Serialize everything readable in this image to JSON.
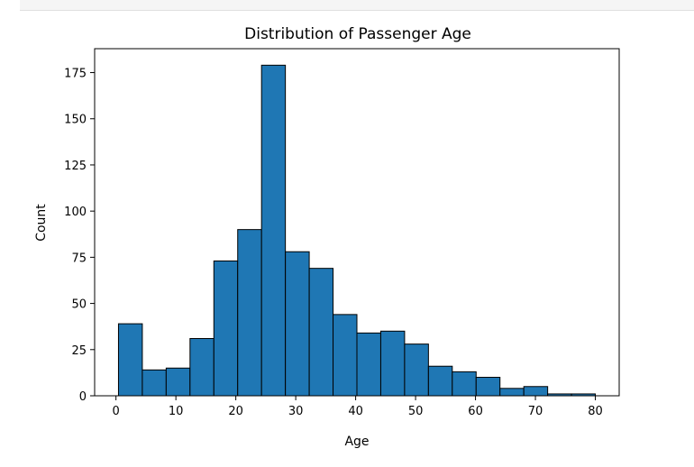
{
  "chart_data": {
    "type": "bar",
    "title": "Distribution of Passenger Age",
    "xlabel": "Age",
    "ylabel": "Count",
    "bin_edges": [
      0.42,
      4.399,
      8.378,
      12.357,
      16.336,
      20.315,
      24.294,
      28.273,
      32.252,
      36.231,
      40.21,
      44.189,
      48.168,
      52.147,
      56.126,
      60.105,
      64.084,
      68.063,
      72.042,
      76.021,
      80.0
    ],
    "values": [
      39,
      14,
      15,
      31,
      73,
      90,
      179,
      78,
      69,
      44,
      34,
      35,
      28,
      16,
      13,
      10,
      4,
      5,
      1,
      1
    ],
    "xlim": [
      -3.56,
      83.98
    ],
    "ylim": [
      0,
      187.95
    ],
    "xticks": [
      0,
      10,
      20,
      30,
      40,
      50,
      60,
      70,
      80
    ],
    "yticks": [
      0,
      25,
      50,
      75,
      100,
      125,
      150,
      175
    ],
    "bar_color": "#1f77b4",
    "edge_color": "#000000",
    "grid": false
  }
}
